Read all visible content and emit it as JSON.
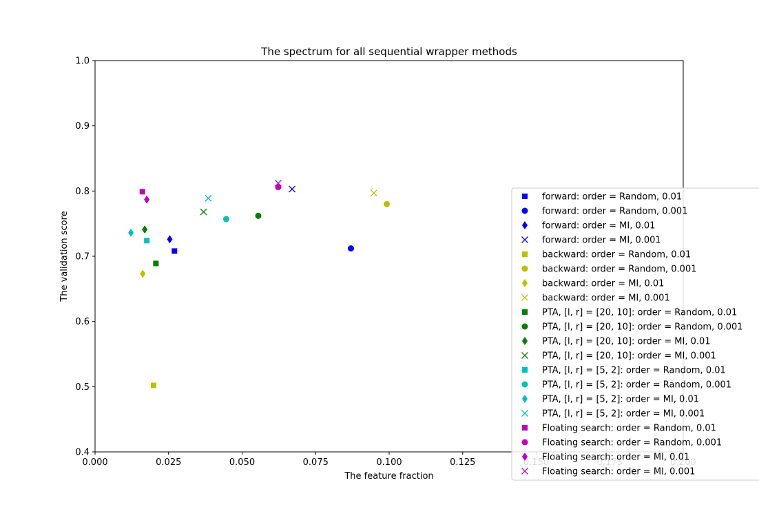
{
  "chart_data": {
    "type": "scatter",
    "title": "The spectrum for all sequential wrapper methods",
    "xlabel": "The feature fraction",
    "ylabel": "The validation score",
    "xlim": [
      0.0,
      0.2
    ],
    "ylim": [
      0.4,
      1.0
    ],
    "xticks": [
      "0.000",
      "0.025",
      "0.050",
      "0.075",
      "0.100",
      "0.125",
      "0.150",
      "0.175",
      "0.200"
    ],
    "yticks": [
      "0.4",
      "0.5",
      "0.6",
      "0.7",
      "0.8",
      "0.9",
      "1.0"
    ],
    "grid": false,
    "legend_position": "lower right, extending past the axes",
    "series": [
      {
        "name": "forward: order = Random, 0.01",
        "color": "#0000ff",
        "marker": "square",
        "x": 0.027,
        "y": 0.708
      },
      {
        "name": "forward: order = Random, 0.001",
        "color": "#0000ff",
        "marker": "circle",
        "x": 0.087,
        "y": 0.712
      },
      {
        "name": "forward: order = MI, 0.01",
        "color": "#0000ff",
        "marker": "thin-diamond",
        "x": 0.0254,
        "y": 0.726
      },
      {
        "name": "forward: order = MI, 0.001",
        "color": "#0000ff",
        "marker": "x",
        "x": 0.067,
        "y": 0.803
      },
      {
        "name": "backward: order = Random, 0.01",
        "color": "#bfbf00",
        "marker": "square",
        "x": 0.0199,
        "y": 0.502
      },
      {
        "name": "backward: order = Random, 0.001",
        "color": "#bfbf00",
        "marker": "circle",
        "x": 0.0992,
        "y": 0.78
      },
      {
        "name": "backward: order = MI, 0.01",
        "color": "#bfbf00",
        "marker": "thin-diamond",
        "x": 0.0162,
        "y": 0.673
      },
      {
        "name": "backward: order = MI, 0.001",
        "color": "#bfbf00",
        "marker": "x",
        "x": 0.0948,
        "y": 0.797
      },
      {
        "name": "PTA, [l, r] = [20, 10]: order = Random, 0.01",
        "color": "#008000",
        "marker": "square",
        "x": 0.0207,
        "y": 0.689
      },
      {
        "name": "PTA, [l, r] = [20, 10]: order = Random, 0.001",
        "color": "#008000",
        "marker": "circle",
        "x": 0.0555,
        "y": 0.762
      },
      {
        "name": "PTA, [l, r] = [20, 10]: order = MI, 0.01",
        "color": "#008000",
        "marker": "thin-diamond",
        "x": 0.0169,
        "y": 0.741
      },
      {
        "name": "PTA, [l, r] = [20, 10]: order = MI, 0.001",
        "color": "#008000",
        "marker": "x",
        "x": 0.0369,
        "y": 0.768
      },
      {
        "name": "PTA, [l, r] = [5, 2]: order = Random, 0.01",
        "color": "#00bfbf",
        "marker": "square",
        "x": 0.0176,
        "y": 0.724
      },
      {
        "name": "PTA, [l, r] = [5, 2]: order = Random, 0.001",
        "color": "#00bfbf",
        "marker": "circle",
        "x": 0.0446,
        "y": 0.757
      },
      {
        "name": "PTA, [l, r] = [5, 2]: order = MI, 0.01",
        "color": "#00bfbf",
        "marker": "thin-diamond",
        "x": 0.0122,
        "y": 0.736
      },
      {
        "name": "PTA, [l, r] = [5, 2]: order = MI, 0.001",
        "color": "#00bfbf",
        "marker": "x",
        "x": 0.0385,
        "y": 0.789
      },
      {
        "name": "Floating search: order = Random, 0.01",
        "color": "#bf00bf",
        "marker": "square",
        "x": 0.0161,
        "y": 0.799
      },
      {
        "name": "Floating search: order = Random, 0.001",
        "color": "#bf00bf",
        "marker": "circle",
        "x": 0.0623,
        "y": 0.806
      },
      {
        "name": "Floating search: order = MI, 0.01",
        "color": "#bf00bf",
        "marker": "thin-diamond",
        "x": 0.0176,
        "y": 0.787
      },
      {
        "name": "Floating search: order = MI, 0.001",
        "color": "#bf00bf",
        "marker": "x",
        "x": 0.0623,
        "y": 0.812
      }
    ]
  }
}
